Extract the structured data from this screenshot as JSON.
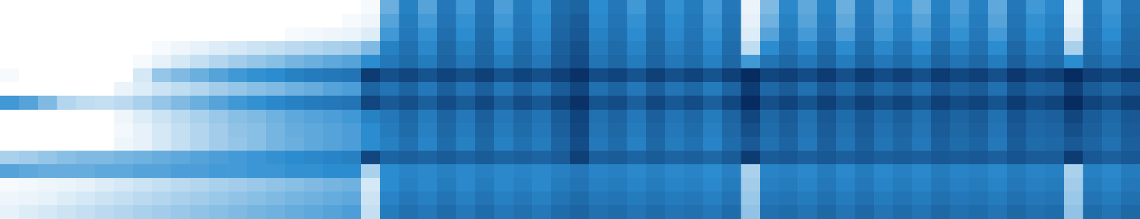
{
  "chart_data": {
    "type": "heatmap",
    "color": "#06285c",
    "color_range": [
      0,
      100
    ],
    "tick_labels": false,
    "cells": [
      [
        0,
        0,
        0,
        0,
        0,
        0,
        0,
        0,
        0,
        0,
        0,
        0,
        0,
        0,
        0,
        0,
        0,
        0,
        0,
        2,
        35,
        55,
        40,
        60,
        45,
        62,
        42,
        58,
        48,
        66,
        70,
        50,
        60,
        45,
        62,
        48,
        58,
        44,
        60,
        5,
        30,
        52,
        38,
        55,
        35,
        58,
        40,
        50,
        36,
        55,
        42,
        56,
        38,
        60,
        45,
        52,
        5,
        58,
        46,
        62
      ],
      [
        0,
        0,
        0,
        0,
        0,
        0,
        0,
        0,
        0,
        0,
        0,
        0,
        0,
        0,
        0,
        0,
        0,
        0,
        2,
        4,
        40,
        58,
        44,
        62,
        48,
        64,
        45,
        60,
        50,
        68,
        74,
        52,
        62,
        48,
        64,
        50,
        60,
        46,
        62,
        6,
        34,
        55,
        40,
        58,
        38,
        60,
        42,
        54,
        40,
        58,
        45,
        58,
        40,
        62,
        48,
        55,
        6,
        60,
        48,
        64
      ],
      [
        0,
        0,
        0,
        0,
        0,
        0,
        0,
        0,
        0,
        0,
        0,
        0,
        0,
        0,
        0,
        2,
        3,
        4,
        5,
        8,
        45,
        60,
        48,
        65,
        50,
        66,
        48,
        62,
        52,
        70,
        76,
        55,
        64,
        50,
        66,
        52,
        62,
        48,
        64,
        8,
        40,
        58,
        44,
        60,
        42,
        62,
        45,
        56,
        44,
        60,
        48,
        60,
        44,
        64,
        50,
        58,
        10,
        62,
        50,
        66
      ],
      [
        0,
        0,
        0,
        0,
        0,
        0,
        0,
        0,
        2,
        4,
        6,
        8,
        10,
        12,
        14,
        16,
        18,
        20,
        22,
        30,
        55,
        64,
        52,
        68,
        55,
        68,
        52,
        66,
        56,
        72,
        80,
        58,
        66,
        54,
        68,
        56,
        64,
        52,
        66,
        15,
        50,
        62,
        52,
        66,
        50,
        66,
        52,
        62,
        50,
        66,
        55,
        64,
        50,
        68,
        55,
        62,
        20,
        64,
        55,
        68
      ],
      [
        0,
        0,
        0,
        0,
        0,
        0,
        0,
        2,
        6,
        10,
        14,
        18,
        22,
        25,
        28,
        32,
        35,
        38,
        40,
        50,
        60,
        66,
        58,
        70,
        60,
        70,
        58,
        68,
        60,
        74,
        82,
        62,
        68,
        58,
        70,
        60,
        66,
        56,
        68,
        45,
        62,
        68,
        60,
        70,
        58,
        70,
        60,
        66,
        58,
        70,
        62,
        68,
        58,
        72,
        62,
        66,
        50,
        68,
        62,
        70
      ],
      [
        2,
        0,
        0,
        0,
        0,
        0,
        0,
        10,
        25,
        30,
        35,
        40,
        45,
        48,
        50,
        55,
        58,
        60,
        62,
        90,
        80,
        85,
        78,
        86,
        80,
        88,
        78,
        86,
        80,
        88,
        95,
        82,
        86,
        78,
        88,
        80,
        86,
        78,
        88,
        98,
        85,
        88,
        82,
        90,
        80,
        90,
        82,
        88,
        80,
        90,
        84,
        88,
        80,
        92,
        84,
        88,
        98,
        88,
        84,
        90
      ],
      [
        0,
        0,
        0,
        0,
        0,
        0,
        5,
        8,
        12,
        15,
        18,
        22,
        25,
        28,
        30,
        34,
        36,
        40,
        42,
        70,
        62,
        70,
        60,
        72,
        62,
        72,
        60,
        70,
        62,
        74,
        85,
        64,
        70,
        60,
        72,
        62,
        68,
        58,
        70,
        90,
        68,
        74,
        64,
        76,
        66,
        76,
        66,
        72,
        64,
        76,
        70,
        74,
        64,
        78,
        70,
        72,
        88,
        74,
        68,
        76
      ],
      [
        45,
        40,
        30,
        18,
        15,
        14,
        16,
        20,
        25,
        30,
        35,
        40,
        45,
        48,
        52,
        55,
        58,
        60,
        62,
        85,
        75,
        80,
        72,
        82,
        74,
        84,
        72,
        82,
        76,
        86,
        95,
        78,
        82,
        72,
        84,
        76,
        82,
        72,
        84,
        98,
        80,
        86,
        78,
        88,
        78,
        88,
        80,
        86,
        78,
        88,
        82,
        86,
        78,
        90,
        82,
        86,
        98,
        86,
        80,
        88
      ],
      [
        0,
        0,
        0,
        0,
        0,
        0,
        4,
        8,
        12,
        16,
        20,
        24,
        28,
        30,
        34,
        38,
        40,
        42,
        45,
        55,
        60,
        68,
        58,
        70,
        60,
        72,
        60,
        68,
        62,
        74,
        86,
        64,
        70,
        60,
        72,
        62,
        68,
        58,
        70,
        85,
        68,
        74,
        64,
        76,
        66,
        76,
        66,
        72,
        64,
        76,
        70,
        74,
        64,
        78,
        70,
        72,
        85,
        74,
        68,
        76
      ],
      [
        0,
        0,
        0,
        0,
        0,
        0,
        3,
        6,
        10,
        14,
        18,
        22,
        26,
        28,
        32,
        36,
        38,
        40,
        42,
        50,
        58,
        66,
        56,
        68,
        58,
        70,
        58,
        66,
        60,
        72,
        84,
        62,
        68,
        58,
        70,
        60,
        66,
        56,
        68,
        80,
        66,
        72,
        62,
        74,
        64,
        74,
        64,
        70,
        62,
        74,
        68,
        72,
        62,
        76,
        68,
        70,
        80,
        72,
        66,
        74
      ],
      [
        0,
        0,
        0,
        0,
        0,
        0,
        4,
        6,
        10,
        14,
        18,
        22,
        25,
        28,
        32,
        35,
        38,
        40,
        42,
        50,
        56,
        64,
        54,
        66,
        56,
        68,
        56,
        64,
        58,
        70,
        82,
        60,
        66,
        56,
        68,
        58,
        64,
        54,
        66,
        75,
        64,
        70,
        60,
        72,
        62,
        72,
        62,
        68,
        60,
        72,
        66,
        70,
        60,
        74,
        66,
        68,
        75,
        70,
        64,
        72
      ],
      [
        20,
        22,
        25,
        28,
        30,
        30,
        32,
        34,
        36,
        38,
        40,
        42,
        44,
        46,
        48,
        50,
        52,
        54,
        56,
        85,
        70,
        72,
        70,
        74,
        70,
        74,
        70,
        72,
        70,
        74,
        88,
        72,
        74,
        70,
        74,
        70,
        72,
        68,
        74,
        90,
        74,
        76,
        72,
        76,
        72,
        76,
        72,
        74,
        72,
        76,
        74,
        76,
        72,
        78,
        74,
        74,
        90,
        76,
        72,
        76
      ],
      [
        40,
        38,
        36,
        36,
        36,
        38,
        38,
        40,
        40,
        42,
        42,
        44,
        44,
        46,
        46,
        48,
        48,
        50,
        50,
        20,
        50,
        54,
        52,
        56,
        52,
        56,
        52,
        54,
        52,
        56,
        60,
        54,
        56,
        52,
        56,
        52,
        54,
        50,
        56,
        20,
        54,
        56,
        52,
        58,
        52,
        58,
        52,
        56,
        52,
        58,
        54,
        56,
        52,
        58,
        54,
        56,
        20,
        56,
        52,
        58
      ],
      [
        2,
        3,
        4,
        5,
        6,
        8,
        10,
        12,
        14,
        16,
        18,
        20,
        22,
        24,
        26,
        28,
        30,
        32,
        34,
        10,
        50,
        56,
        52,
        58,
        52,
        58,
        52,
        56,
        52,
        58,
        62,
        56,
        58,
        54,
        58,
        54,
        56,
        52,
        58,
        22,
        56,
        58,
        54,
        60,
        54,
        60,
        54,
        58,
        54,
        60,
        56,
        58,
        54,
        60,
        56,
        58,
        22,
        58,
        54,
        60
      ],
      [
        4,
        5,
        6,
        8,
        10,
        12,
        14,
        16,
        18,
        20,
        22,
        24,
        26,
        28,
        30,
        32,
        34,
        36,
        38,
        12,
        54,
        60,
        56,
        62,
        56,
        62,
        56,
        60,
        56,
        62,
        66,
        60,
        62,
        58,
        62,
        58,
        60,
        56,
        62,
        24,
        60,
        62,
        58,
        64,
        58,
        64,
        58,
        62,
        58,
        64,
        60,
        62,
        58,
        64,
        60,
        62,
        24,
        62,
        58,
        64
      ],
      [
        6,
        8,
        10,
        12,
        14,
        16,
        18,
        20,
        22,
        24,
        26,
        28,
        30,
        32,
        34,
        36,
        38,
        40,
        42,
        14,
        58,
        64,
        60,
        66,
        60,
        66,
        60,
        64,
        60,
        66,
        70,
        64,
        66,
        62,
        66,
        62,
        64,
        60,
        66,
        26,
        64,
        66,
        62,
        68,
        62,
        68,
        62,
        66,
        62,
        68,
        64,
        66,
        62,
        68,
        64,
        66,
        26,
        66,
        62,
        68
      ]
    ]
  }
}
